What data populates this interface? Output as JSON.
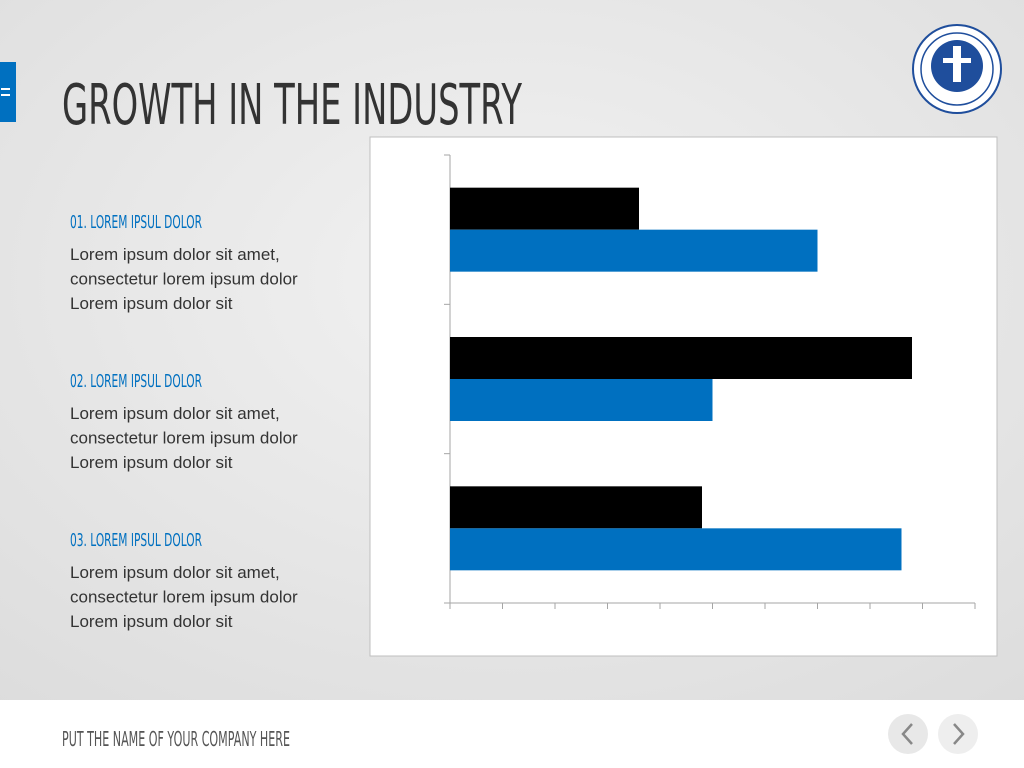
{
  "header": {
    "title": "GROWTH IN THE INDUSTRY"
  },
  "items": [
    {
      "heading": "01. LOREM IPSUL DOLOR",
      "lines": [
        "Lorem ipsum dolor sit amet,",
        "consectetur lorem ipsum dolor",
        "Lorem ipsum dolor sit"
      ]
    },
    {
      "heading": "02. LOREM IPSUL DOLOR",
      "lines": [
        "Lorem ipsum dolor sit amet,",
        "consectetur lorem ipsum dolor",
        "Lorem ipsum dolor sit"
      ]
    },
    {
      "heading": "03. LOREM IPSUL DOLOR",
      "lines": [
        "Lorem ipsum dolor sit amet,",
        "consectetur lorem ipsum dolor",
        "Lorem ipsum dolor sit"
      ]
    }
  ],
  "chart_data": {
    "type": "hbar",
    "categories": [
      null,
      null,
      null
    ],
    "series": [
      {
        "color": "#000000",
        "values": [
          3.6,
          8.8,
          4.8
        ]
      },
      {
        "color": "#0070c0",
        "values": [
          7.0,
          5.0,
          8.6
        ]
      }
    ],
    "xlim": [
      0,
      10
    ],
    "xticks": [
      0,
      1,
      2,
      3,
      4,
      5,
      6,
      7,
      8,
      9,
      10
    ]
  },
  "footer": {
    "company": "PUT THE NAME OF YOUR COMPANY HERE"
  }
}
